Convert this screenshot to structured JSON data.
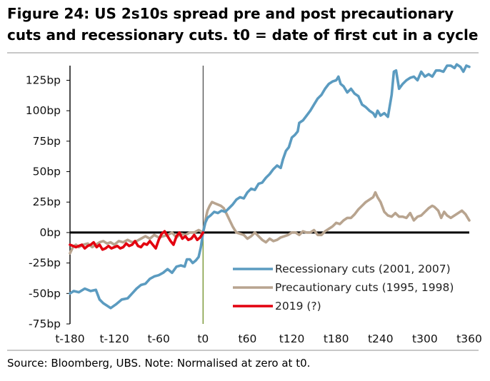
{
  "title": "Figure 24: US 2s10s spread pre and post precautionary cuts and recessionary cuts. t0 = date of first cut in a cycle",
  "source": "Source:  Bloomberg, UBS. Note: Normalised at zero at t0.",
  "chart_data": {
    "type": "line",
    "xlim": [
      -180,
      360
    ],
    "ylim": [
      -75,
      137
    ],
    "x_ticks": [
      -180,
      -120,
      -60,
      0,
      60,
      120,
      180,
      240,
      300,
      360
    ],
    "x_tick_labels": [
      "t-180",
      "t-120",
      "t-60",
      "t0",
      "t60",
      "t120",
      "t180",
      "t240",
      "t300",
      "t360"
    ],
    "y_ticks": [
      -75,
      -50,
      -25,
      0,
      25,
      50,
      75,
      100,
      125
    ],
    "y_tick_labels": [
      "-75bp",
      "-50bp",
      "-25bp",
      "0bp",
      "25bp",
      "50bp",
      "75bp",
      "100bp",
      "125bp"
    ],
    "grid": false,
    "legend_position": "bottom-right",
    "series": [
      {
        "name": "Recessionary cuts (2001, 2007)",
        "color": "#5b9bc0",
        "points": [
          [
            -180,
            -50
          ],
          [
            -175,
            -48
          ],
          [
            -168,
            -49
          ],
          [
            -160,
            -46
          ],
          [
            -152,
            -48
          ],
          [
            -145,
            -47
          ],
          [
            -140,
            -55
          ],
          [
            -135,
            -58
          ],
          [
            -130,
            -60
          ],
          [
            -125,
            -62
          ],
          [
            -118,
            -59
          ],
          [
            -110,
            -55
          ],
          [
            -102,
            -54
          ],
          [
            -96,
            -50
          ],
          [
            -90,
            -46
          ],
          [
            -84,
            -43
          ],
          [
            -78,
            -42
          ],
          [
            -72,
            -38
          ],
          [
            -66,
            -36
          ],
          [
            -60,
            -35
          ],
          [
            -54,
            -33
          ],
          [
            -48,
            -30
          ],
          [
            -42,
            -33
          ],
          [
            -36,
            -28
          ],
          [
            -30,
            -27
          ],
          [
            -25,
            -28
          ],
          [
            -22,
            -22
          ],
          [
            -18,
            -22
          ],
          [
            -14,
            -25
          ],
          [
            -10,
            -23
          ],
          [
            -6,
            -20
          ],
          [
            -3,
            -12
          ],
          [
            0,
            0
          ],
          [
            3,
            8
          ],
          [
            6,
            12
          ],
          [
            10,
            14
          ],
          [
            15,
            17
          ],
          [
            20,
            16
          ],
          [
            25,
            18
          ],
          [
            30,
            17
          ],
          [
            35,
            20
          ],
          [
            40,
            23
          ],
          [
            45,
            27
          ],
          [
            50,
            29
          ],
          [
            55,
            28
          ],
          [
            60,
            33
          ],
          [
            65,
            36
          ],
          [
            70,
            35
          ],
          [
            75,
            40
          ],
          [
            80,
            41
          ],
          [
            85,
            45
          ],
          [
            90,
            48
          ],
          [
            95,
            52
          ],
          [
            100,
            55
          ],
          [
            105,
            53
          ],
          [
            108,
            60
          ],
          [
            112,
            67
          ],
          [
            116,
            70
          ],
          [
            120,
            78
          ],
          [
            124,
            80
          ],
          [
            128,
            83
          ],
          [
            130,
            90
          ],
          [
            135,
            92
          ],
          [
            140,
            96
          ],
          [
            145,
            100
          ],
          [
            150,
            105
          ],
          [
            155,
            110
          ],
          [
            160,
            113
          ],
          [
            165,
            118
          ],
          [
            170,
            122
          ],
          [
            175,
            124
          ],
          [
            180,
            125
          ],
          [
            183,
            128
          ],
          [
            186,
            122
          ],
          [
            190,
            120
          ],
          [
            195,
            115
          ],
          [
            200,
            118
          ],
          [
            205,
            114
          ],
          [
            210,
            112
          ],
          [
            215,
            105
          ],
          [
            220,
            103
          ],
          [
            225,
            100
          ],
          [
            230,
            98
          ],
          [
            233,
            95
          ],
          [
            236,
            100
          ],
          [
            240,
            96
          ],
          [
            245,
            98
          ],
          [
            250,
            95
          ],
          [
            255,
            113
          ],
          [
            258,
            132
          ],
          [
            261,
            133
          ],
          [
            265,
            118
          ],
          [
            270,
            122
          ],
          [
            275,
            125
          ],
          [
            280,
            127
          ],
          [
            285,
            128
          ],
          [
            290,
            125
          ],
          [
            295,
            132
          ],
          [
            300,
            128
          ],
          [
            305,
            130
          ],
          [
            310,
            128
          ],
          [
            315,
            133
          ],
          [
            320,
            133
          ],
          [
            325,
            132
          ],
          [
            330,
            137
          ],
          [
            335,
            137
          ],
          [
            340,
            135
          ],
          [
            343,
            138
          ],
          [
            348,
            136
          ],
          [
            352,
            132
          ],
          [
            356,
            137
          ],
          [
            360,
            136
          ]
        ]
      },
      {
        "name": "Precautionary cuts (1995, 1998)",
        "color": "#b8a48f",
        "points": [
          [
            -180,
            -17
          ],
          [
            -176,
            -12
          ],
          [
            -172,
            -10
          ],
          [
            -168,
            -12
          ],
          [
            -162,
            -10
          ],
          [
            -156,
            -9
          ],
          [
            -150,
            -12
          ],
          [
            -145,
            -10
          ],
          [
            -140,
            -8
          ],
          [
            -135,
            -7
          ],
          [
            -130,
            -9
          ],
          [
            -125,
            -8
          ],
          [
            -120,
            -10
          ],
          [
            -114,
            -7
          ],
          [
            -108,
            -8
          ],
          [
            -102,
            -6
          ],
          [
            -96,
            -8
          ],
          [
            -90,
            -7
          ],
          [
            -84,
            -5
          ],
          [
            -78,
            -3
          ],
          [
            -72,
            -5
          ],
          [
            -66,
            -2
          ],
          [
            -60,
            -4
          ],
          [
            -54,
            -3
          ],
          [
            -48,
            -2
          ],
          [
            -42,
            0
          ],
          [
            -36,
            -4
          ],
          [
            -30,
            -1
          ],
          [
            -24,
            -2
          ],
          [
            -18,
            0
          ],
          [
            -12,
            0
          ],
          [
            -6,
            2
          ],
          [
            0,
            0
          ],
          [
            3,
            10
          ],
          [
            6,
            18
          ],
          [
            9,
            22
          ],
          [
            12,
            25
          ],
          [
            16,
            24
          ],
          [
            20,
            23
          ],
          [
            24,
            22
          ],
          [
            28,
            20
          ],
          [
            32,
            15
          ],
          [
            36,
            10
          ],
          [
            40,
            5
          ],
          [
            45,
            0
          ],
          [
            50,
            -1
          ],
          [
            55,
            -2
          ],
          [
            60,
            -5
          ],
          [
            65,
            -3
          ],
          [
            70,
            0
          ],
          [
            75,
            -3
          ],
          [
            80,
            -6
          ],
          [
            85,
            -8
          ],
          [
            90,
            -5
          ],
          [
            95,
            -7
          ],
          [
            100,
            -6
          ],
          [
            105,
            -4
          ],
          [
            110,
            -3
          ],
          [
            115,
            -2
          ],
          [
            120,
            0
          ],
          [
            125,
            0
          ],
          [
            130,
            -2
          ],
          [
            135,
            1
          ],
          [
            140,
            0
          ],
          [
            145,
            0
          ],
          [
            150,
            2
          ],
          [
            155,
            -2
          ],
          [
            160,
            -2
          ],
          [
            165,
            1
          ],
          [
            170,
            3
          ],
          [
            175,
            5
          ],
          [
            180,
            8
          ],
          [
            185,
            7
          ],
          [
            190,
            10
          ],
          [
            195,
            12
          ],
          [
            200,
            12
          ],
          [
            205,
            15
          ],
          [
            210,
            19
          ],
          [
            215,
            22
          ],
          [
            220,
            25
          ],
          [
            225,
            27
          ],
          [
            230,
            29
          ],
          [
            233,
            33
          ],
          [
            236,
            29
          ],
          [
            240,
            25
          ],
          [
            245,
            17
          ],
          [
            250,
            14
          ],
          [
            255,
            13
          ],
          [
            260,
            16
          ],
          [
            265,
            13
          ],
          [
            270,
            13
          ],
          [
            275,
            12
          ],
          [
            280,
            16
          ],
          [
            285,
            10
          ],
          [
            290,
            13
          ],
          [
            295,
            14
          ],
          [
            300,
            17
          ],
          [
            305,
            20
          ],
          [
            310,
            22
          ],
          [
            313,
            21
          ],
          [
            318,
            18
          ],
          [
            322,
            12
          ],
          [
            326,
            17
          ],
          [
            330,
            14
          ],
          [
            335,
            12
          ],
          [
            340,
            14
          ],
          [
            345,
            16
          ],
          [
            350,
            18
          ],
          [
            355,
            15
          ],
          [
            360,
            10
          ]
        ]
      },
      {
        "name": "2019 (?)",
        "color": "#e3000f",
        "points": [
          [
            -180,
            -10
          ],
          [
            -176,
            -11
          ],
          [
            -172,
            -12
          ],
          [
            -168,
            -11
          ],
          [
            -164,
            -10
          ],
          [
            -160,
            -13
          ],
          [
            -156,
            -11
          ],
          [
            -152,
            -10
          ],
          [
            -148,
            -8
          ],
          [
            -144,
            -12
          ],
          [
            -140,
            -10
          ],
          [
            -136,
            -14
          ],
          [
            -132,
            -13
          ],
          [
            -128,
            -11
          ],
          [
            -124,
            -13
          ],
          [
            -120,
            -12
          ],
          [
            -116,
            -11
          ],
          [
            -112,
            -13
          ],
          [
            -108,
            -12
          ],
          [
            -104,
            -9
          ],
          [
            -100,
            -11
          ],
          [
            -96,
            -10
          ],
          [
            -92,
            -7
          ],
          [
            -88,
            -11
          ],
          [
            -84,
            -12
          ],
          [
            -80,
            -9
          ],
          [
            -76,
            -10
          ],
          [
            -72,
            -7
          ],
          [
            -68,
            -10
          ],
          [
            -64,
            -13
          ],
          [
            -60,
            -6
          ],
          [
            -56,
            -1
          ],
          [
            -52,
            1
          ],
          [
            -48,
            -3
          ],
          [
            -44,
            -7
          ],
          [
            -40,
            -10
          ],
          [
            -36,
            -3
          ],
          [
            -32,
            0
          ],
          [
            -28,
            -5
          ],
          [
            -24,
            -3
          ],
          [
            -20,
            -6
          ],
          [
            -16,
            -5
          ],
          [
            -12,
            -2
          ],
          [
            -8,
            -6
          ],
          [
            -4,
            -4
          ],
          [
            0,
            0
          ]
        ]
      }
    ]
  }
}
